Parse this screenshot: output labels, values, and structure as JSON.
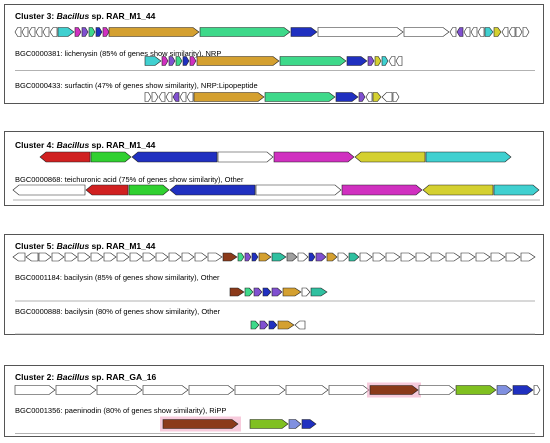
{
  "panels": [
    {
      "title": {
        "prefix": "Cluster 3: ",
        "species": "Bacillus",
        "suffix": " sp. RAR_M1_44"
      },
      "refs": [
        {
          "text": "BGC0000381: lichenysin (85% of genes show similarity), NRP"
        },
        {
          "text": "BGC0000433: surfactin (47% of genes show similarity), NRP:Lipopeptide"
        }
      ]
    },
    {
      "title": {
        "prefix": "Cluster 4: ",
        "species": "Bacillus",
        "suffix": " sp. RAR_M1_44"
      },
      "refs": [
        {
          "text": "BGC0000868: teichuronic acid (75% of genes show similarity), Other"
        }
      ]
    },
    {
      "title": {
        "prefix": "Cluster 5: ",
        "species": "Bacillus",
        "suffix": " sp. RAR_M1_44"
      },
      "refs": [
        {
          "text": "BGC0001184: bacilysin (85% of genes show similarity), Other"
        },
        {
          "text": "BGC0000888: bacilysin (80% of genes show similarity), Other"
        }
      ]
    },
    {
      "title": {
        "prefix": "Cluster 2: ",
        "species": "Bacillus",
        "suffix": " sp. RAR_GA_16"
      },
      "refs": [
        {
          "text": "BGC0001356: paeninodin (80% of genes show similarity), RiPP"
        }
      ]
    }
  ],
  "colors": {
    "nrps_orange": "#d4a030",
    "green": "#3ed98a",
    "blue": "#2030c0",
    "purple": "#8050d0",
    "magenta": "#d030c0",
    "yellow_green": "#d4d030",
    "cyan": "#40d0d0",
    "red": "#d02020",
    "bright_green": "#30d030",
    "brown": "#8b3a1a",
    "lime": "#80c020",
    "light_blue": "#8090e0",
    "teal": "#30c0a0",
    "grey": "#a0a0a0",
    "white": "#ffffff",
    "highlight": "#f0a0c0"
  }
}
